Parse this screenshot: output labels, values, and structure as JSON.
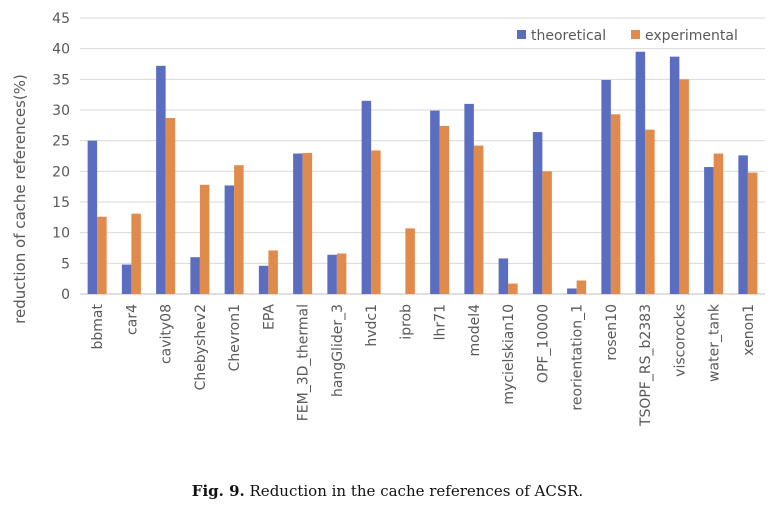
{
  "caption": {
    "label": "Fig. 9.",
    "text": " Reduction in the cache references of ACSR."
  },
  "chart_data": {
    "type": "bar",
    "title": "",
    "xlabel": "",
    "ylabel": "reduction of cache references(%)",
    "ylim": [
      0,
      45
    ],
    "ytick_step": 5,
    "grid": true,
    "legend_position": "top-right",
    "categories": [
      "bbmat",
      "car4",
      "cavity08",
      "Chebyshev2",
      "Chevron1",
      "EPA",
      "FEM_3D_thermal",
      "hangGlider_3",
      "hvdc1",
      "iprob",
      "lhr71",
      "model4",
      "mycielskian10",
      "OPF_10000",
      "reorientation_1",
      "rosen10",
      "TSOPF_RS_b2383",
      "viscorocks",
      "water_tank",
      "xenon1"
    ],
    "series": [
      {
        "name": "theoretical",
        "color": "#5B6DBF",
        "values": [
          25.0,
          4.8,
          37.2,
          6.0,
          17.7,
          4.6,
          22.9,
          6.4,
          31.5,
          0.0,
          29.9,
          31.0,
          5.8,
          26.4,
          0.9,
          34.9,
          39.5,
          38.7,
          20.7,
          22.6
        ]
      },
      {
        "name": "experimental",
        "color": "#E08A4B",
        "values": [
          12.6,
          13.1,
          28.7,
          17.8,
          21.0,
          7.1,
          23.0,
          6.6,
          23.4,
          10.7,
          27.4,
          24.2,
          1.7,
          20.0,
          2.2,
          29.3,
          26.8,
          35.0,
          22.9,
          19.8
        ]
      }
    ]
  }
}
